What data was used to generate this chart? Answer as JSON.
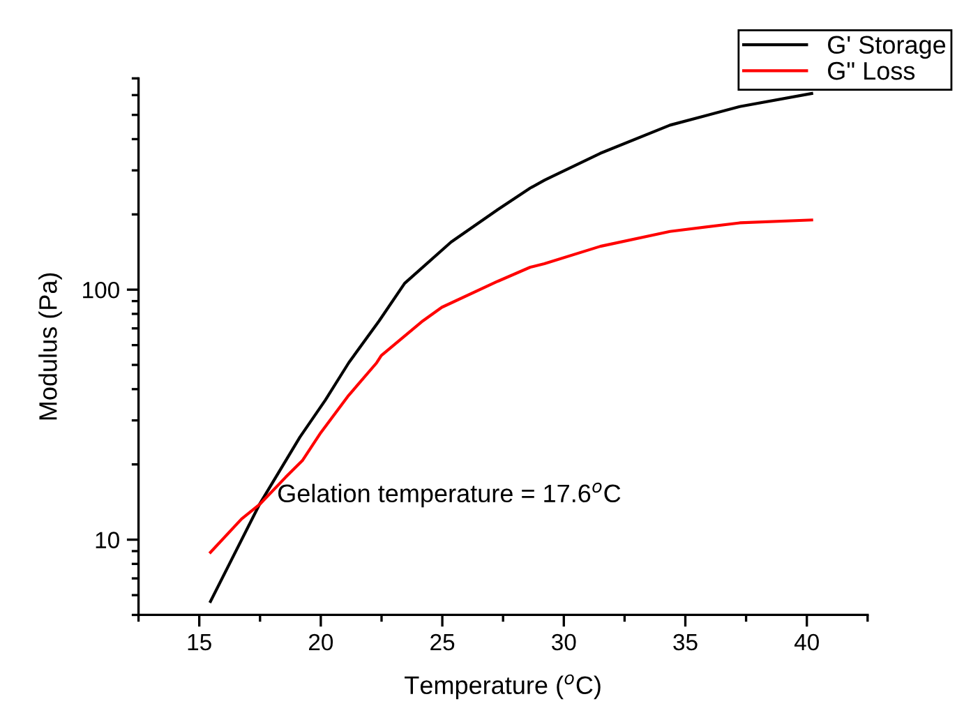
{
  "chart_data": {
    "type": "line",
    "xlabel": "Temperature ($^{o}$C)",
    "ylabel": "Modulus (Pa)",
    "annotations": [
      "Gelation temperature = 17.6$^{o}$C"
    ],
    "log": "y",
    "grid": false,
    "legend": "top right",
    "marker": "none",
    "line_style": "solid",
    "xlim": [
      12.5,
      42.5
    ],
    "xticks": [
      {
        "value": 12.5,
        "label": null
      },
      15,
      {
        "value": 17.5,
        "label": null
      },
      20,
      {
        "value": 22.5,
        "label": null
      },
      25,
      {
        "value": 27.5,
        "label": null
      },
      30,
      {
        "value": 32.5,
        "label": null
      },
      35,
      {
        "value": 37.5,
        "label": null
      },
      40,
      {
        "value": 42.5,
        "label": null
      }
    ],
    "ylim": [
      5,
      700
    ],
    "yticks": [
      {
        "value": 5,
        "label": null
      },
      {
        "value": 6,
        "label": null
      },
      {
        "value": 7,
        "label": null
      },
      {
        "value": 8,
        "label": null
      },
      {
        "value": 9,
        "label": null
      },
      10,
      {
        "value": 20,
        "label": null
      },
      {
        "value": 30,
        "label": null
      },
      {
        "value": 40,
        "label": null
      },
      {
        "value": 50,
        "label": null
      },
      {
        "value": 60,
        "label": null
      },
      {
        "value": 70,
        "label": null
      },
      {
        "value": 80,
        "label": null
      },
      {
        "value": 90,
        "label": null
      },
      100,
      {
        "value": 200,
        "label": null
      },
      {
        "value": 300,
        "label": null
      },
      {
        "value": 400,
        "label": null
      },
      {
        "value": 500,
        "label": null
      },
      {
        "value": 600,
        "label": null
      },
      {
        "value": 700,
        "label": null
      }
    ],
    "series": [
      {
        "name": "G' Storage",
        "color": "#000000",
        "x": [
          15.46,
          17.47,
          19.14,
          20.19,
          21.15,
          22.4,
          23.45,
          25.36,
          27.28,
          28.62,
          29.2,
          31.5,
          34.37,
          37.24,
          40.2
        ],
        "values": [
          5.66,
          13.8,
          25.7,
          36.2,
          51,
          75,
          106,
          155,
          209,
          255,
          274,
          351,
          455,
          540,
          609
        ]
      },
      {
        "name": "G\" Loss",
        "color": "#ff0000",
        "x": [
          15.46,
          16.74,
          17.47,
          18.56,
          19.24,
          20.0,
          21.15,
          22.3,
          22.49,
          24.2,
          24.98,
          27.28,
          28.62,
          29.2,
          31.5,
          34.37,
          37.24,
          40.2
        ],
        "values": [
          8.9,
          12.1,
          13.8,
          17.8,
          20.7,
          26.8,
          37.8,
          51,
          54.5,
          75,
          85,
          108,
          123,
          127,
          149,
          171,
          185,
          190
        ]
      }
    ]
  }
}
